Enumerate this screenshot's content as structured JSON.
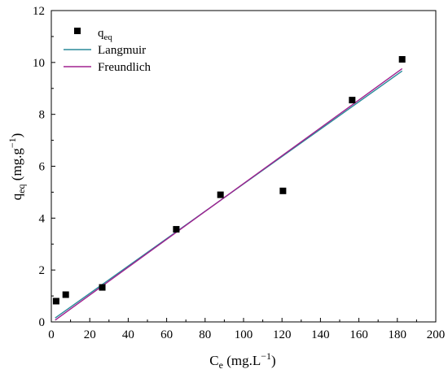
{
  "chart_data": {
    "type": "scatter",
    "title": "",
    "xlabel": {
      "base": "C",
      "sub": "e",
      "unit": " (mg.L",
      "sup": "−1",
      "close": ")"
    },
    "ylabel": {
      "base": "q",
      "sub": "eq",
      "unit": " (mg.g",
      "sup": "−1",
      "close": ")"
    },
    "xlim": [
      0,
      200
    ],
    "ylim": [
      0,
      12
    ],
    "xticks": [
      "0",
      "20",
      "40",
      "60",
      "80",
      "100",
      "120",
      "140",
      "160",
      "180",
      "200"
    ],
    "yticks": [
      "0",
      "2",
      "4",
      "6",
      "8",
      "10",
      "12"
    ],
    "grid": false,
    "legend_position": "top-left",
    "series": [
      {
        "name": "q",
        "name_sub": "eq",
        "kind": "scatter",
        "marker": "square",
        "color": "#000000",
        "x": [
          2.5,
          7.5,
          26.5,
          65,
          88,
          120.5,
          156.5,
          182.5
        ],
        "y": [
          0.8,
          1.05,
          1.33,
          3.57,
          4.9,
          5.05,
          8.55,
          10.12
        ]
      },
      {
        "name": "Langmuir",
        "kind": "line",
        "color": "#2a8a9a",
        "x": [
          2,
          182.5
        ],
        "y": [
          0.15,
          9.67
        ]
      },
      {
        "name": "Freundlich",
        "kind": "line",
        "color": "#a0208f",
        "x": [
          2,
          182.5
        ],
        "y": [
          0.07,
          9.76
        ]
      }
    ]
  }
}
